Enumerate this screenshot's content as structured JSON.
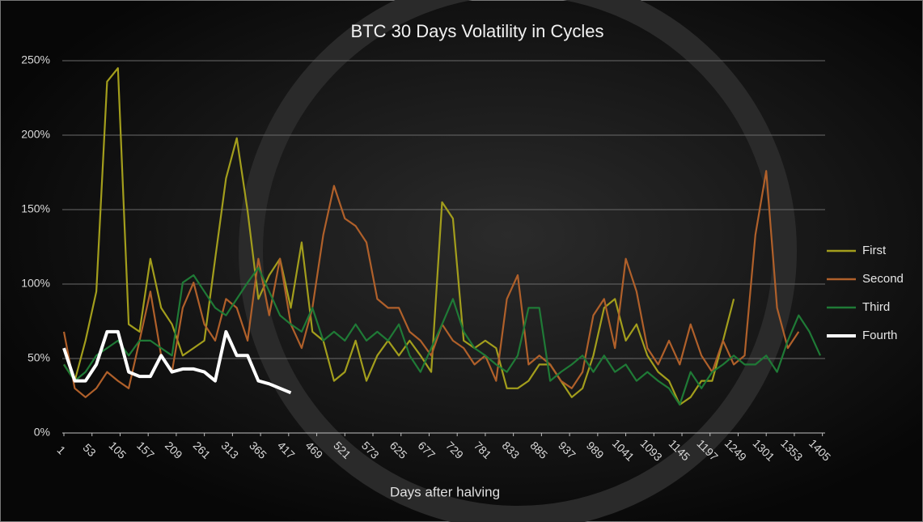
{
  "chart_data": {
    "type": "line",
    "title": "BTC 30 Days Volatility in Cycles",
    "x_label": "Days after halving",
    "x": [
      1,
      21,
      41,
      61,
      81,
      101,
      121,
      141,
      161,
      181,
      201,
      221,
      241,
      261,
      281,
      301,
      321,
      341,
      361,
      381,
      401,
      421,
      441,
      461,
      481,
      501,
      521,
      541,
      561,
      581,
      601,
      621,
      641,
      661,
      681,
      701,
      721,
      741,
      761,
      781,
      801,
      821,
      841,
      861,
      881,
      901,
      921,
      941,
      961,
      981,
      1001,
      1021,
      1041,
      1061,
      1081,
      1101,
      1121,
      1141,
      1161,
      1181,
      1201,
      1221,
      1241,
      1261,
      1281,
      1301,
      1321,
      1341,
      1361,
      1381,
      1401
    ],
    "series": [
      {
        "name": "First",
        "color": "#a39e1c",
        "values": [
          46,
          35,
          62,
          95,
          236,
          245,
          73,
          68,
          117,
          84,
          73,
          52,
          57,
          62,
          117,
          171,
          198,
          149,
          90,
          106,
          117,
          84,
          128,
          68,
          62,
          35,
          41,
          62,
          35,
          52,
          62,
          52,
          62,
          52,
          41,
          155,
          144,
          62,
          57,
          62,
          57,
          30,
          30,
          35,
          46,
          46,
          35,
          24,
          30,
          52,
          84,
          90,
          62,
          73,
          52,
          41,
          35,
          19,
          24,
          35,
          35,
          62,
          90,
          null,
          null,
          null,
          null,
          null,
          null,
          null,
          null
        ]
      },
      {
        "name": "Second",
        "color": "#b0602a",
        "values": [
          68,
          30,
          24,
          30,
          41,
          35,
          30,
          62,
          95,
          52,
          41,
          84,
          101,
          73,
          62,
          90,
          84,
          62,
          117,
          79,
          117,
          73,
          57,
          84,
          133,
          166,
          144,
          139,
          128,
          90,
          84,
          84,
          68,
          62,
          52,
          73,
          62,
          57,
          46,
          52,
          35,
          90,
          106,
          46,
          52,
          46,
          35,
          30,
          41,
          79,
          90,
          57,
          117,
          95,
          57,
          46,
          62,
          46,
          73,
          52,
          41,
          62,
          46,
          52,
          133,
          176,
          84,
          57,
          68,
          null,
          null
        ]
      },
      {
        "name": "Third",
        "color": "#1f7a36",
        "values": [
          46,
          35,
          41,
          52,
          57,
          62,
          52,
          62,
          62,
          57,
          52,
          101,
          106,
          95,
          84,
          79,
          90,
          101,
          111,
          95,
          79,
          73,
          68,
          84,
          62,
          68,
          62,
          73,
          62,
          68,
          62,
          73,
          52,
          41,
          57,
          73,
          90,
          68,
          57,
          52,
          46,
          41,
          52,
          84,
          84,
          35,
          41,
          46,
          52,
          41,
          52,
          41,
          46,
          35,
          41,
          35,
          30,
          19,
          41,
          30,
          41,
          46,
          52,
          46,
          46,
          52,
          41,
          62,
          79,
          68,
          52
        ]
      },
      {
        "name": "Fourth",
        "color": "#ffffff",
        "values": [
          57,
          35,
          35,
          46,
          68,
          68,
          41,
          38,
          38,
          52,
          41,
          43,
          43,
          41,
          35,
          68,
          52,
          52,
          35,
          33,
          30,
          27,
          null,
          null,
          null,
          null,
          null,
          null,
          null,
          null,
          null,
          null,
          null,
          null,
          null,
          null,
          null,
          null,
          null,
          null,
          null,
          null,
          null,
          null,
          null,
          null,
          null,
          null,
          null,
          null,
          null,
          null,
          null,
          null,
          null,
          null,
          null,
          null,
          null,
          null,
          null,
          null,
          null,
          null,
          null,
          null,
          null,
          null,
          null,
          null,
          null
        ]
      }
    ],
    "xlim": [
      1,
      1410
    ],
    "xticks": [
      1,
      53,
      105,
      157,
      209,
      261,
      313,
      365,
      417,
      469,
      521,
      573,
      625,
      677,
      729,
      781,
      833,
      885,
      937,
      989,
      1041,
      1093,
      1145,
      1197,
      1249,
      1301,
      1353,
      1405
    ],
    "ylim": [
      0,
      250
    ],
    "yticks": [
      {
        "value": 0,
        "label": "0%"
      },
      {
        "value": 50,
        "label": "50%"
      },
      {
        "value": 100,
        "label": "100%"
      },
      {
        "value": 150,
        "label": "150%"
      },
      {
        "value": 200,
        "label": "200%"
      },
      {
        "value": 250,
        "label": "250%"
      }
    ],
    "grid": true,
    "legend": "right"
  }
}
